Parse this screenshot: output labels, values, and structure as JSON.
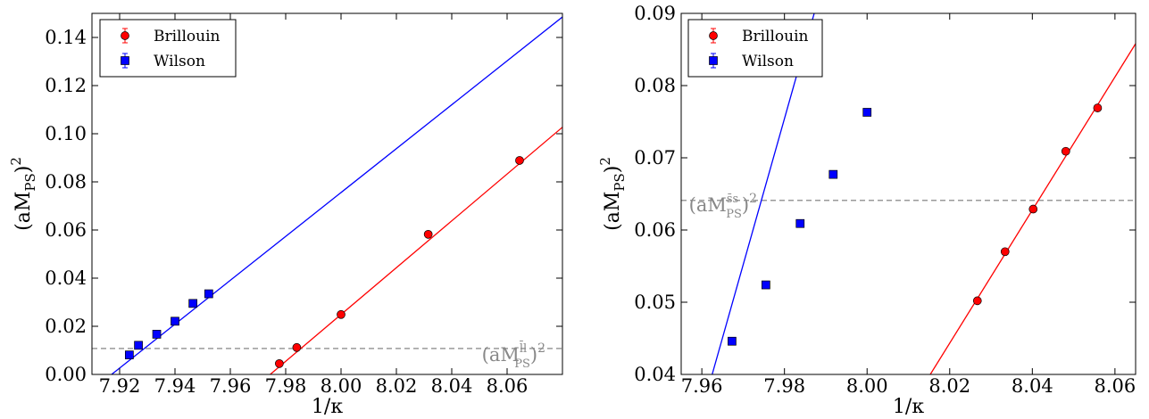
{
  "chart_data": [
    {
      "type": "scatter",
      "xlabel": "1/κ",
      "ylabel": "(aM_PS)^2",
      "xlim": [
        7.91,
        8.08
      ],
      "ylim": [
        0.0,
        0.15
      ],
      "xticks": [
        "7.92",
        "7.94",
        "7.96",
        "7.98",
        "8.00",
        "8.02",
        "8.04",
        "8.06"
      ],
      "xtick_values": [
        7.92,
        7.94,
        7.96,
        7.98,
        8.0,
        8.02,
        8.04,
        8.06
      ],
      "yticks": [
        "0.00",
        "0.02",
        "0.04",
        "0.06",
        "0.08",
        "0.10",
        "0.12",
        "0.14"
      ],
      "ytick_values": [
        0.0,
        0.02,
        0.04,
        0.06,
        0.08,
        0.1,
        0.12,
        0.14
      ],
      "grid": false,
      "legend_position": "top-left",
      "series": [
        {
          "name": "Brillouin",
          "marker": "circle",
          "color": "#ff0000",
          "x": [
            7.9777,
            7.984,
            8.0,
            8.0315,
            8.0645
          ],
          "y": [
            0.0045,
            0.0112,
            0.0249,
            0.0582,
            0.0889
          ],
          "yerr": [
            0.0003,
            0.0003,
            0.0004,
            0.0005,
            0.0006
          ],
          "fit": {
            "x": [
              7.9744,
              8.08
            ],
            "y": [
              0.0,
              0.1027
            ]
          }
        },
        {
          "name": "Wilson",
          "marker": "square",
          "color": "#0000ff",
          "x": [
            7.9235,
            7.9268,
            7.9334,
            7.94,
            7.9465,
            7.9522
          ],
          "y": [
            0.0081,
            0.0121,
            0.0167,
            0.0221,
            0.0295,
            0.0335
          ],
          "yerr": [
            0.0004,
            0.0004,
            0.0005,
            0.0005,
            0.0006,
            0.0007
          ],
          "fit": {
            "x": [
              7.9171,
              8.08
            ],
            "y": [
              0.0,
              0.1485
            ]
          }
        }
      ],
      "reference_line": {
        "y": 0.0108,
        "label_base": "(aM",
        "label_sup": "l̄l",
        "label_sub": "PS",
        "label_tail": ")",
        "label_exp": "2",
        "color": "#999999",
        "style": "dashed"
      }
    },
    {
      "type": "scatter",
      "xlabel": "1/κ",
      "ylabel": "(aM_PS)^2",
      "xlim": [
        7.955,
        8.065
      ],
      "ylim": [
        0.04,
        0.09
      ],
      "xticks": [
        "7.96",
        "7.98",
        "8.00",
        "8.02",
        "8.04",
        "8.06"
      ],
      "xtick_values": [
        7.96,
        7.98,
        8.0,
        8.02,
        8.04,
        8.06
      ],
      "yticks": [
        "0.04",
        "0.05",
        "0.06",
        "0.07",
        "0.08",
        "0.09"
      ],
      "ytick_values": [
        0.04,
        0.05,
        0.06,
        0.07,
        0.08,
        0.09
      ],
      "grid": false,
      "legend_position": "top-left",
      "series": [
        {
          "name": "Brillouin",
          "marker": "circle",
          "color": "#ff0000",
          "x": [
            8.0267,
            8.0334,
            8.0402,
            8.0481,
            8.0558
          ],
          "y": [
            0.0502,
            0.057,
            0.0629,
            0.0709,
            0.0769
          ],
          "yerr": [
            0.0002,
            0.0003,
            0.0003,
            0.0003,
            0.0003
          ],
          "fit": {
            "x": [
              8.0153,
              8.065
            ],
            "y": [
              0.04,
              0.0858
            ]
          }
        },
        {
          "name": "Wilson",
          "marker": "square",
          "color": "#0000ff",
          "x": [
            7.9673,
            7.9755,
            7.9838,
            7.9918,
            8.0
          ],
          "y": [
            0.0446,
            0.0524,
            0.0609,
            0.0677,
            0.0763
          ],
          "yerr": [
            0.0003,
            0.0003,
            0.0004,
            0.0004,
            0.0004
          ],
          "fit": {
            "x": [
              7.9625,
              7.9872
            ],
            "y": [
              0.04,
              0.09
            ]
          }
        }
      ],
      "reference_line": {
        "y": 0.0641,
        "label_base": "(aM",
        "label_sup": "s̄s",
        "label_sub": "PS",
        "label_tail": ")",
        "label_exp": "2",
        "color": "#999999",
        "style": "dashed"
      }
    }
  ]
}
